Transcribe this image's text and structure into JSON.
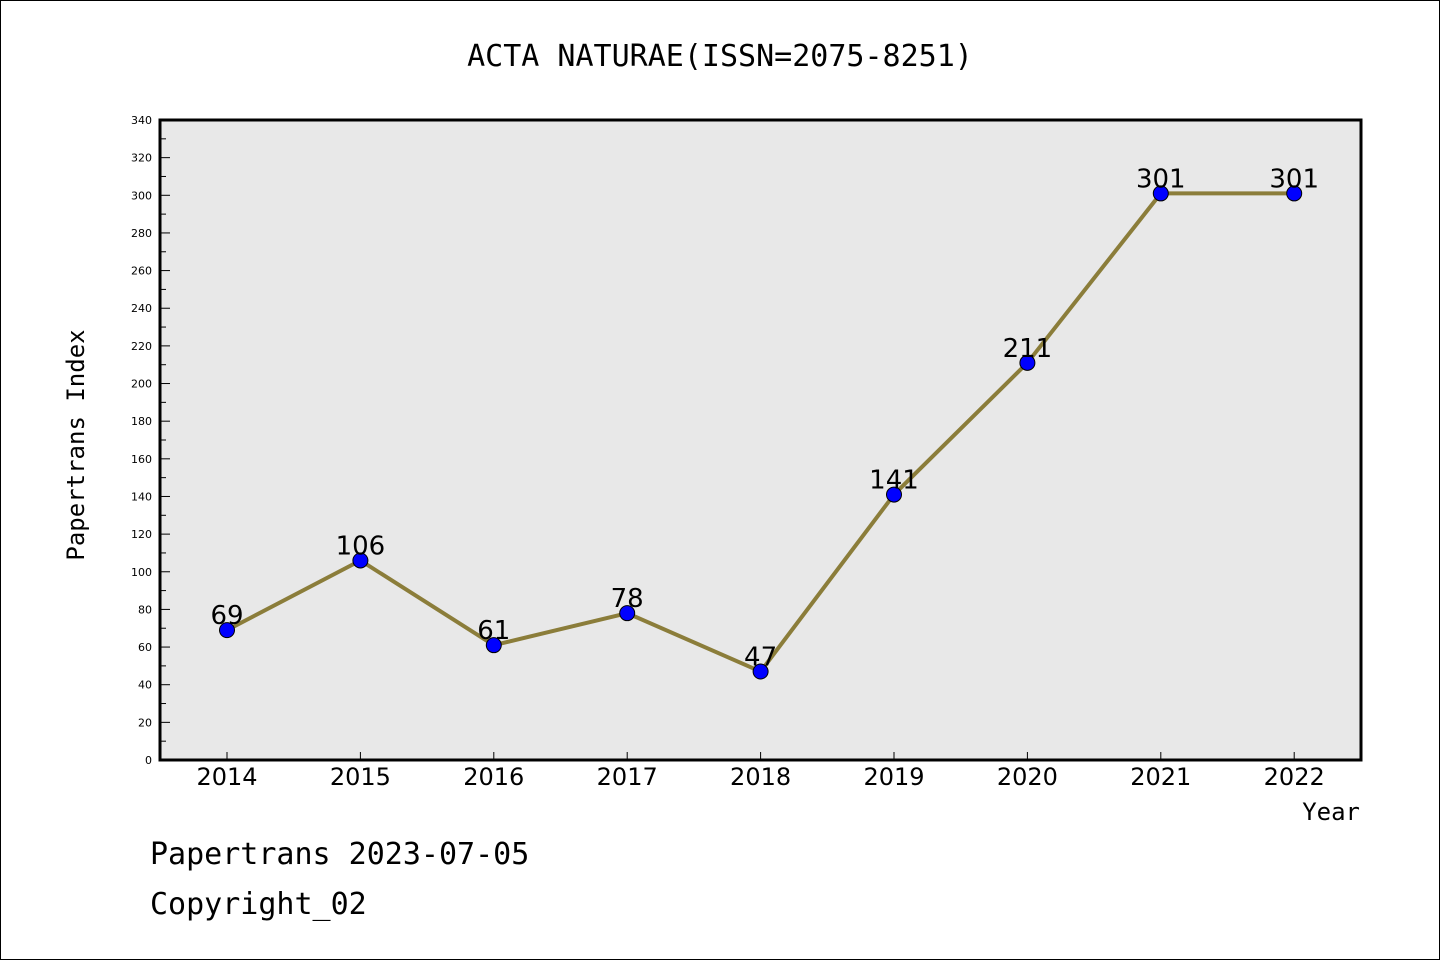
{
  "chart_data": {
    "type": "line",
    "title": "ACTA NATURAE(ISSN=2075-8251)",
    "xlabel": "Year",
    "ylabel": "Papertrans Index",
    "ylim": [
      0,
      340
    ],
    "y_major_step": 20,
    "y_minor_step": 10,
    "grid": false,
    "x": [
      "2014",
      "2015",
      "2016",
      "2017",
      "2018",
      "2019",
      "2020",
      "2021",
      "2022"
    ],
    "series": [
      {
        "values": [
          69,
          106,
          61,
          78,
          47,
          141,
          211,
          301,
          301
        ],
        "line_color": "#8b7d3a",
        "marker_color": "#0000ff"
      }
    ],
    "data_labels": [
      "69",
      "106",
      "61",
      "78",
      "47",
      "141",
      "211",
      "301",
      "301"
    ],
    "plot_background": "#e8e8e8"
  },
  "footer": {
    "line1": "Papertrans 2023-07-05",
    "line2": "Copyright_02"
  }
}
